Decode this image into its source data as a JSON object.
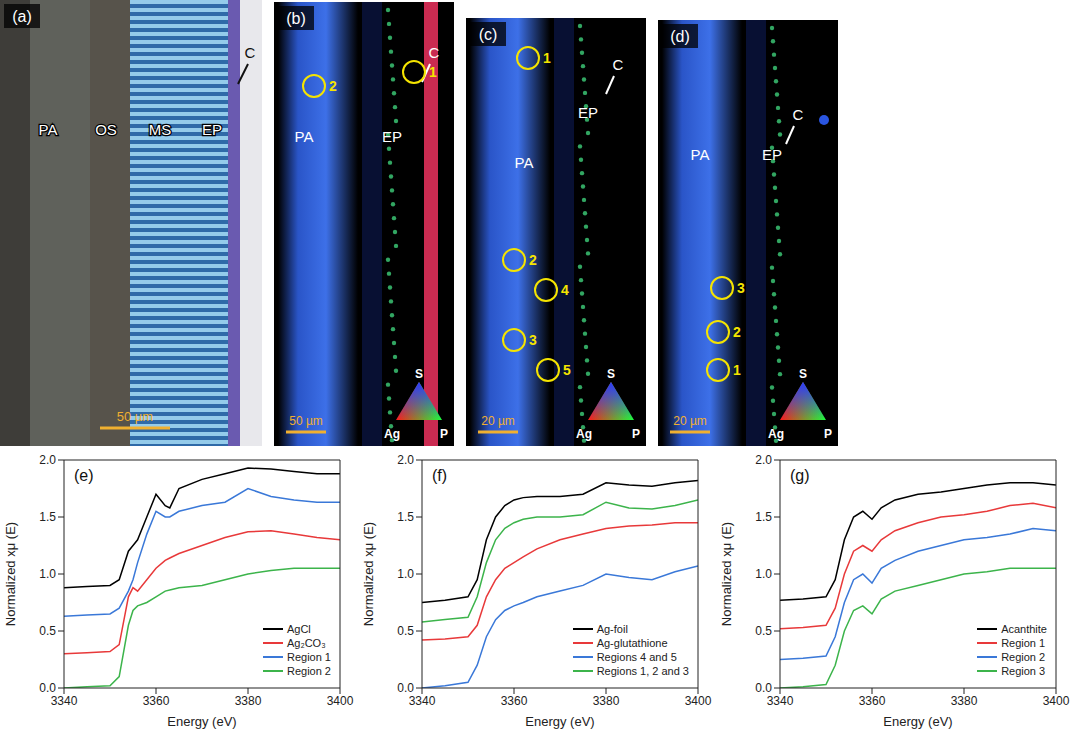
{
  "image_panels": [
    {
      "letter": "(a)",
      "labels": [
        "PA",
        "OS",
        "MS",
        "EP",
        "C"
      ],
      "scale_bar": "50 µm"
    },
    {
      "letter": "(b)",
      "labels": [
        "PA",
        "EP",
        "C"
      ],
      "regions": [
        "1",
        "2"
      ],
      "scale_bar": "50 µm",
      "color_key": [
        "S",
        "Ag",
        "P"
      ]
    },
    {
      "letter": "(c)",
      "labels": [
        "PA",
        "EP",
        "C"
      ],
      "regions": [
        "1",
        "2",
        "3",
        "4",
        "5"
      ],
      "scale_bar": "20 µm",
      "color_key": [
        "S",
        "Ag",
        "P"
      ]
    },
    {
      "letter": "(d)",
      "labels": [
        "PA",
        "EP",
        "C"
      ],
      "regions": [
        "1",
        "2",
        "3"
      ],
      "scale_bar": "20 µm",
      "color_key": [
        "S",
        "Ag",
        "P"
      ]
    }
  ],
  "chart_data": [
    {
      "type": "line",
      "title": "(e)",
      "x_label": "Energy (eV)",
      "y_label": "Normalized xμ (E)",
      "x": [
        3340,
        3345,
        3350,
        3352,
        3354,
        3355,
        3356,
        3358,
        3360,
        3362,
        3363,
        3365,
        3370,
        3375,
        3380,
        3385,
        3390,
        3395,
        3400
      ],
      "xlim": [
        3340,
        3400
      ],
      "xticks": [
        3340,
        3360,
        3380,
        3400
      ],
      "ylim": [
        0,
        2
      ],
      "yticks": [
        {
          "value": 0,
          "label": "0.0"
        },
        0.5,
        {
          "value": 1,
          "label": "1.0"
        },
        1.5,
        {
          "value": 2,
          "label": "2.0"
        }
      ],
      "legend": "lower right",
      "series": [
        {
          "name": "AgCl",
          "color": "#000000",
          "values": [
            0.88,
            0.89,
            0.9,
            0.95,
            1.2,
            1.25,
            1.3,
            1.5,
            1.7,
            1.6,
            1.58,
            1.75,
            1.83,
            1.88,
            1.93,
            1.92,
            1.9,
            1.88,
            1.88
          ]
        },
        {
          "name": "Ag₂CO₃",
          "color": "#e8393a",
          "values": [
            0.3,
            0.31,
            0.32,
            0.38,
            0.8,
            0.88,
            0.85,
            0.95,
            1.05,
            1.12,
            1.14,
            1.18,
            1.25,
            1.32,
            1.37,
            1.38,
            1.35,
            1.32,
            1.3
          ]
        },
        {
          "name": "Region 1",
          "color": "#3a78d8",
          "values": [
            0.63,
            0.64,
            0.65,
            0.7,
            0.85,
            0.95,
            1.1,
            1.35,
            1.55,
            1.5,
            1.5,
            1.55,
            1.6,
            1.63,
            1.75,
            1.68,
            1.65,
            1.63,
            1.63
          ]
        },
        {
          "name": "Region 2",
          "color": "#3cb44b",
          "values": [
            0.0,
            0.01,
            0.02,
            0.1,
            0.55,
            0.68,
            0.72,
            0.75,
            0.8,
            0.85,
            0.86,
            0.88,
            0.9,
            0.95,
            1.0,
            1.03,
            1.05,
            1.05,
            1.05
          ]
        }
      ]
    },
    {
      "type": "line",
      "title": "(f)",
      "x_label": "Energy (eV)",
      "y_label": "Normalized xμ (E)",
      "x": [
        3340,
        3345,
        3350,
        3352,
        3354,
        3356,
        3358,
        3360,
        3362,
        3365,
        3370,
        3375,
        3380,
        3385,
        3390,
        3395,
        3400
      ],
      "xlim": [
        3340,
        3400
      ],
      "xticks": [
        3340,
        3360,
        3380,
        3400
      ],
      "ylim": [
        0,
        2
      ],
      "yticks": [
        {
          "value": 0,
          "label": "0.0"
        },
        0.5,
        {
          "value": 1,
          "label": "1.0"
        },
        1.5,
        {
          "value": 2,
          "label": "2.0"
        }
      ],
      "legend": "lower right",
      "series": [
        {
          "name": "Ag-foil",
          "color": "#000000",
          "values": [
            0.75,
            0.77,
            0.8,
            0.95,
            1.3,
            1.5,
            1.6,
            1.65,
            1.67,
            1.68,
            1.68,
            1.7,
            1.8,
            1.78,
            1.77,
            1.8,
            1.82
          ]
        },
        {
          "name": "Ag-glutathione",
          "color": "#e8393a",
          "values": [
            0.42,
            0.43,
            0.45,
            0.55,
            0.8,
            0.95,
            1.05,
            1.1,
            1.15,
            1.22,
            1.3,
            1.35,
            1.4,
            1.42,
            1.43,
            1.45,
            1.45
          ]
        },
        {
          "name": "Regions 4 and 5",
          "color": "#3a78d8",
          "values": [
            0.0,
            0.02,
            0.05,
            0.2,
            0.45,
            0.6,
            0.68,
            0.72,
            0.75,
            0.8,
            0.85,
            0.9,
            1.0,
            0.97,
            0.95,
            1.02,
            1.07
          ]
        },
        {
          "name": "Regions 1, 2 and 3",
          "color": "#3cb44b",
          "values": [
            0.58,
            0.6,
            0.62,
            0.8,
            1.1,
            1.3,
            1.4,
            1.45,
            1.48,
            1.5,
            1.5,
            1.52,
            1.63,
            1.58,
            1.57,
            1.6,
            1.65
          ]
        }
      ]
    },
    {
      "type": "line",
      "title": "(g)",
      "x_label": "Energy (eV)",
      "y_label": "Normalized xμ (E)",
      "x": [
        3340,
        3345,
        3350,
        3352,
        3354,
        3356,
        3358,
        3360,
        3362,
        3365,
        3370,
        3375,
        3380,
        3385,
        3390,
        3395,
        3400
      ],
      "xlim": [
        3340,
        3400
      ],
      "xticks": [
        3340,
        3360,
        3380,
        3400
      ],
      "ylim": [
        0,
        2
      ],
      "yticks": [
        {
          "value": 0,
          "label": "0.0"
        },
        0.5,
        {
          "value": 1,
          "label": "1.0"
        },
        1.5,
        {
          "value": 2,
          "label": "2.0"
        }
      ],
      "legend": "lower right",
      "series": [
        {
          "name": "Acanthite",
          "color": "#000000",
          "values": [
            0.77,
            0.78,
            0.8,
            0.95,
            1.3,
            1.5,
            1.55,
            1.48,
            1.58,
            1.65,
            1.7,
            1.72,
            1.75,
            1.78,
            1.8,
            1.8,
            1.78
          ]
        },
        {
          "name": "Region 1",
          "color": "#e8393a",
          "values": [
            0.52,
            0.53,
            0.55,
            0.7,
            1.0,
            1.2,
            1.25,
            1.2,
            1.3,
            1.38,
            1.45,
            1.5,
            1.52,
            1.55,
            1.6,
            1.62,
            1.58
          ]
        },
        {
          "name": "Region 2",
          "color": "#3a78d8",
          "values": [
            0.25,
            0.26,
            0.28,
            0.45,
            0.75,
            0.95,
            1.0,
            0.92,
            1.05,
            1.12,
            1.2,
            1.25,
            1.3,
            1.32,
            1.35,
            1.4,
            1.38
          ]
        },
        {
          "name": "Region 3",
          "color": "#3cb44b",
          "values": [
            0.0,
            0.01,
            0.03,
            0.2,
            0.5,
            0.68,
            0.72,
            0.65,
            0.78,
            0.85,
            0.9,
            0.95,
            1.0,
            1.02,
            1.05,
            1.05,
            1.05
          ]
        }
      ]
    }
  ]
}
